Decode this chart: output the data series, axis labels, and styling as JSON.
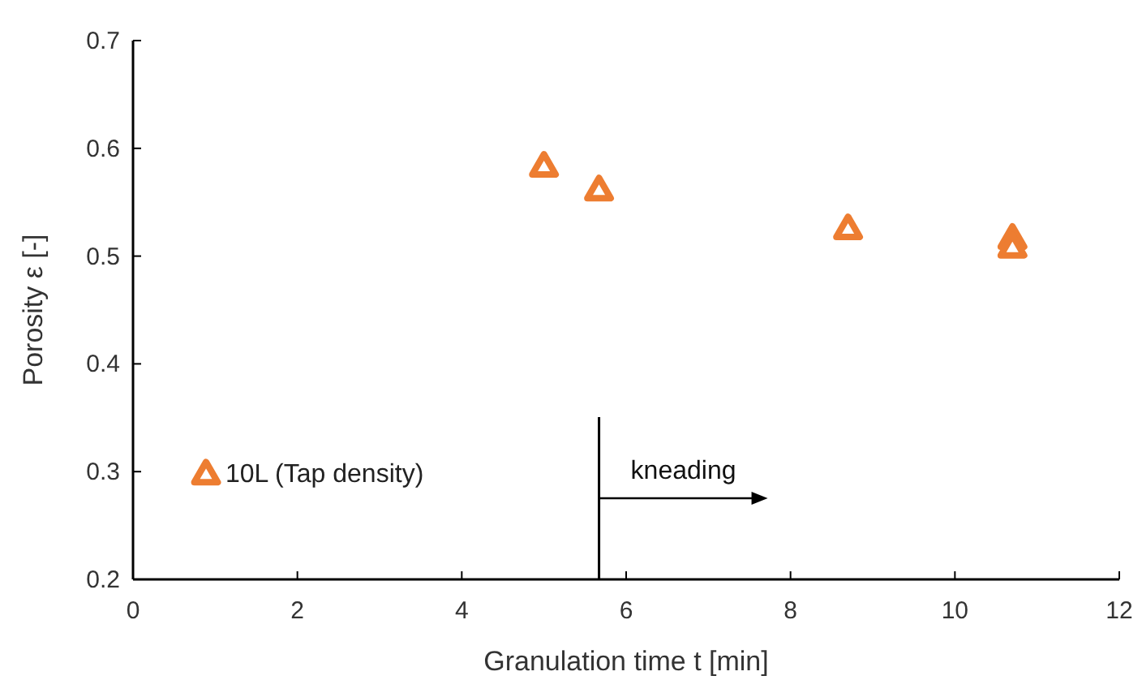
{
  "chart_data": {
    "type": "scatter",
    "xlabel": "Granulation time t [min]",
    "ylabel": "Porosity ε [-]",
    "xlim": [
      0,
      12
    ],
    "xticks": [
      0,
      2,
      4,
      6,
      8,
      10,
      12
    ],
    "ylim": [
      0.2,
      0.7
    ],
    "yticks": [
      {
        "value": 0.2,
        "label": "0.2"
      },
      {
        "value": 0.3,
        "label": "0.3"
      },
      {
        "value": 0.4,
        "label": "0.4"
      },
      {
        "value": 0.5,
        "label": "0.5"
      },
      {
        "value": 0.6,
        "label": "0.6"
      },
      {
        "value": 0.7,
        "label": "0.7"
      }
    ],
    "series": [
      {
        "name": "10L (Tap density)",
        "color": "#ed7d31",
        "x": [
          5.0,
          5.67,
          8.7,
          10.7,
          10.7
        ],
        "values": [
          0.585,
          0.563,
          0.527,
          0.518,
          0.51
        ]
      }
    ],
    "marker": "triangle",
    "legend": "bottom left",
    "grid": false,
    "ref_lines": [
      {
        "axis": "x",
        "value": 5.67,
        "color": "#000000",
        "label": "kneading"
      }
    ]
  }
}
